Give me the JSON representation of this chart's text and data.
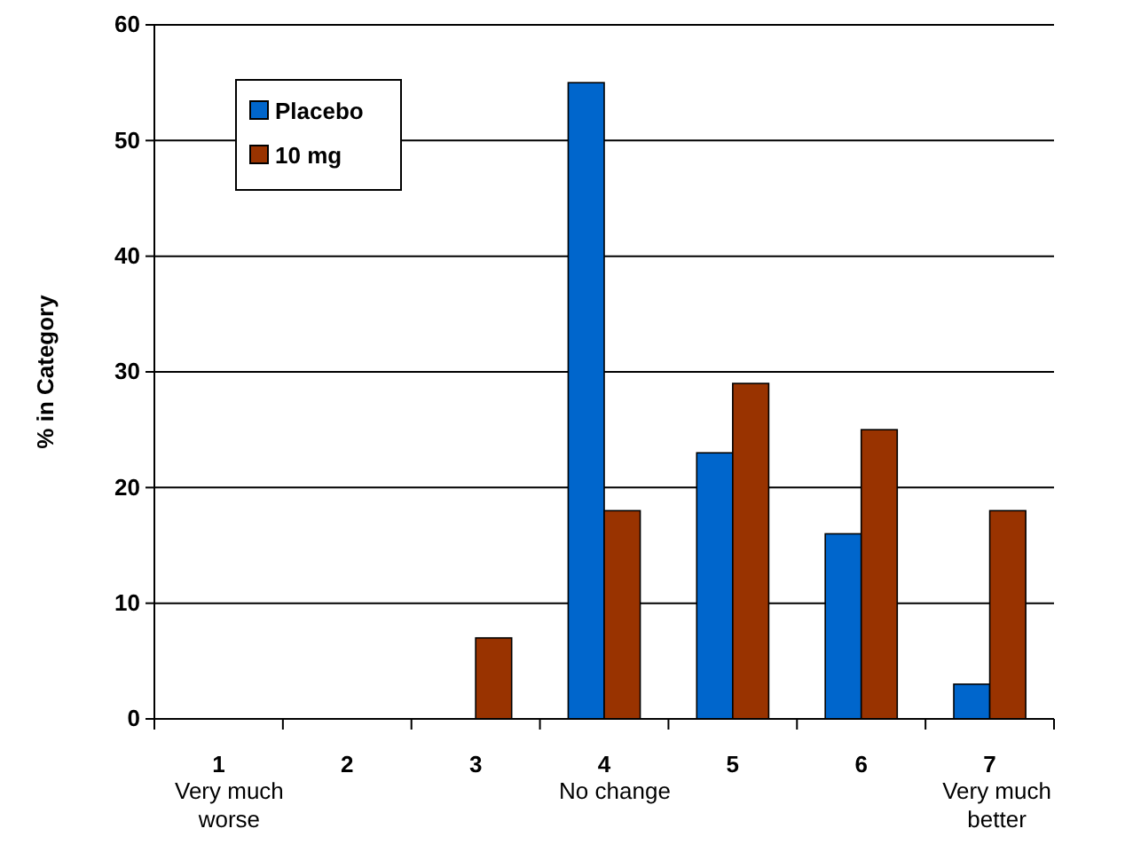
{
  "chart_data": {
    "type": "bar",
    "ylabel": "% in Category",
    "categories": [
      "1",
      "2",
      "3",
      "4",
      "5",
      "6",
      "7"
    ],
    "series": [
      {
        "name": "Placebo",
        "color": "#0066cc",
        "values": [
          0,
          0,
          0,
          55,
          23,
          16,
          3
        ]
      },
      {
        "name": "10 mg",
        "color": "#993300",
        "values": [
          0,
          0,
          7,
          18,
          29,
          25,
          18
        ]
      }
    ],
    "ylim": [
      0,
      60
    ],
    "yticks": [
      0,
      10,
      20,
      30,
      40,
      50,
      60
    ],
    "grid": "y",
    "legend": "top left",
    "annotations": [
      "Very much worse",
      "No change",
      "Very much better"
    ]
  }
}
